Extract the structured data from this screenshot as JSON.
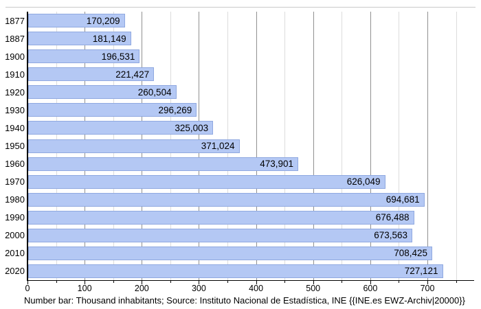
{
  "chart_data": {
    "type": "bar",
    "orientation": "horizontal",
    "title": "",
    "xlabel": "",
    "ylabel": "",
    "categories": [
      "1877",
      "1887",
      "1900",
      "1910",
      "1920",
      "1930",
      "1940",
      "1950",
      "1960",
      "1970",
      "1980",
      "1990",
      "2000",
      "2010",
      "2020"
    ],
    "values": [
      170209,
      181149,
      196531,
      221427,
      260504,
      296269,
      325003,
      371024,
      473901,
      626049,
      694681,
      676488,
      673563,
      708425,
      727121
    ],
    "value_labels": [
      "170,209",
      "181,149",
      "196,531",
      "221,427",
      "260,504",
      "296,269",
      "325,003",
      "371,024",
      "473,901",
      "626,049",
      "694,681",
      "676,488",
      "673,563",
      "708,425",
      "727,121"
    ],
    "unit": "Thousand inhabitants",
    "xlim": [
      0,
      782
    ],
    "x_major_tick_step": 100,
    "x_minor_tick_step": 50,
    "x_tick_labels": [
      "0",
      "100",
      "200",
      "300",
      "400",
      "500",
      "600",
      "700"
    ],
    "grid": true,
    "caption": "Number bar: Thousand inhabitants; Source: Instituto Nacional de Estadística, INE {{INE.es EWZ-Archiv|20000}}",
    "colors": {
      "bar_fill": "#b4c8f4",
      "bar_border": "#8fa8e0",
      "grid_major": "#909090",
      "grid_minor": "#dcdcdc",
      "axis": "#000000",
      "text": "#000000"
    }
  }
}
